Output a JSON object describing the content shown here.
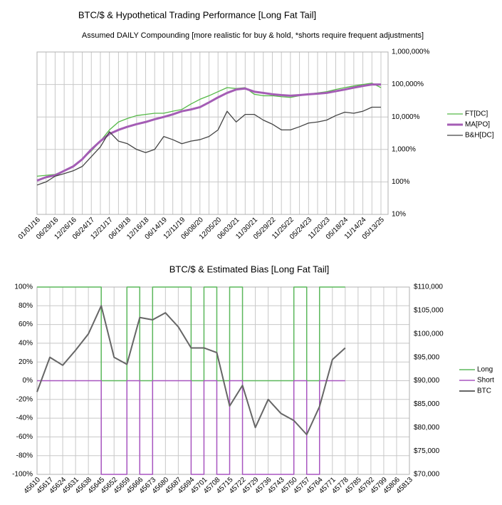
{
  "chart_data": [
    {
      "type": "line",
      "title": "BTC/$ & Hypothetical Trading Performance [Long Fat Tail]",
      "subtitle": "Assumed DAILY Compounding [more realistic for buy & hold, *shorts require frequent adjustments]",
      "categories": [
        "01/01/16",
        null,
        "06/29/16",
        null,
        "12/26/16",
        null,
        "06/24/17",
        null,
        "12/21/17",
        null,
        "06/19/18",
        null,
        "12/16/18",
        null,
        "06/14/19",
        null,
        "12/11/19",
        null,
        "06/08/20",
        null,
        "12/05/20",
        null,
        "06/03/21",
        null,
        "11/30/21",
        null,
        "05/29/22",
        null,
        "11/25/22",
        null,
        "05/24/23",
        null,
        "11/20/23",
        null,
        "05/18/24",
        null,
        "11/14/24",
        null,
        "05/13/25"
      ],
      "series": [
        {
          "name": "FT[DC]",
          "color": "#55b947",
          "width": 1.3,
          "values": [
            150,
            160,
            170,
            220,
            300,
            500,
            900,
            1800,
            4000,
            7000,
            9000,
            11000,
            12000,
            13000,
            13000,
            15000,
            17000,
            25000,
            35000,
            45000,
            60000,
            80000,
            75000,
            80000,
            50000,
            45000,
            45000,
            42000,
            40000,
            45000,
            50000,
            55000,
            60000,
            70000,
            80000,
            90000,
            100000,
            110000,
            80000
          ]
        },
        {
          "name": "MA[PO]",
          "color": "#a45db5",
          "width": 3,
          "values": [
            110,
            140,
            160,
            220,
            300,
            500,
            1000,
            1800,
            3000,
            4000,
            5000,
            6000,
            7000,
            8500,
            10000,
            12000,
            15000,
            17000,
            20000,
            28000,
            40000,
            55000,
            70000,
            75000,
            60000,
            55000,
            50000,
            47000,
            45000,
            47000,
            50000,
            52000,
            55000,
            62000,
            70000,
            80000,
            90000,
            100000,
            100000
          ]
        },
        {
          "name": "B&H[DC]",
          "color": "#444444",
          "width": 1.3,
          "values": [
            80,
            100,
            150,
            180,
            220,
            300,
            600,
            1200,
            3500,
            1800,
            1500,
            1000,
            800,
            1000,
            2500,
            2000,
            1500,
            1800,
            2000,
            2500,
            4000,
            15000,
            7000,
            12000,
            12000,
            8000,
            6000,
            4000,
            4000,
            5000,
            6500,
            7000,
            8000,
            11000,
            14000,
            13000,
            15000,
            20000,
            20000
          ]
        }
      ],
      "log_scale": true,
      "ylim": [
        10,
        1000000
      ],
      "yticks": [
        {
          "value": 10,
          "label": "10%"
        },
        {
          "value": 100,
          "label": "100%"
        },
        {
          "value": 1000,
          "label": "1,000%"
        },
        {
          "value": 10000,
          "label": "10,000%"
        },
        {
          "value": 100000,
          "label": "100,000%"
        },
        {
          "value": 1000000,
          "label": "1,000,000%"
        }
      ],
      "tick_color": "#4caf50",
      "grid": true,
      "legend": "right"
    },
    {
      "type": "line",
      "title": "BTC/$ & Estimated Bias [Long Fat Tail]",
      "x": [
        45610,
        45617,
        45624,
        45631,
        45638,
        45645,
        45652,
        45659,
        45666,
        45673,
        45680,
        45687,
        45694,
        45701,
        45708,
        45715,
        45722,
        45729,
        45736,
        45743,
        45750,
        45757,
        45764,
        45771,
        45778
      ],
      "series": [
        {
          "name": "Long",
          "color": "#5cb85c",
          "width": 1.5,
          "step": true,
          "values": [
            100,
            100,
            100,
            100,
            100,
            0,
            0,
            100,
            0,
            100,
            100,
            100,
            0,
            100,
            0,
            100,
            0,
            0,
            0,
            0,
            100,
            0,
            100,
            100,
            100
          ]
        },
        {
          "name": "Short",
          "color": "#a855c0",
          "width": 1.5,
          "step": true,
          "values": [
            0,
            0,
            0,
            0,
            0,
            -100,
            -100,
            0,
            -100,
            0,
            0,
            0,
            -100,
            0,
            -100,
            0,
            -100,
            -100,
            -100,
            -100,
            0,
            -100,
            0,
            0,
            0
          ]
        },
        {
          "name": "BTC",
          "color": "#666666",
          "width": 2,
          "axis": "y2",
          "values": [
            87600,
            95000,
            93300,
            96500,
            100000,
            106000,
            95000,
            93500,
            103500,
            103000,
            104500,
            101500,
            97000,
            97000,
            96000,
            84600,
            89000,
            80000,
            86000,
            83000,
            81500,
            78500,
            84500,
            94500,
            97000
          ]
        }
      ],
      "xlim": [
        45610,
        45813
      ],
      "xticks": [
        45610,
        45617,
        45624,
        45631,
        45638,
        45645,
        45652,
        45659,
        45666,
        45673,
        45680,
        45687,
        45694,
        45701,
        45708,
        45715,
        45722,
        45729,
        45736,
        45743,
        45750,
        45757,
        45764,
        45771,
        45778,
        45785,
        45792,
        45799,
        45806,
        45813
      ],
      "ylim": [
        -100,
        100
      ],
      "yticks": [
        {
          "value": -100,
          "label": "-100%"
        },
        {
          "value": -80,
          "label": "-80%"
        },
        {
          "value": -60,
          "label": "-60%"
        },
        {
          "value": -40,
          "label": "-40%"
        },
        {
          "value": -20,
          "label": "-20%"
        },
        {
          "value": 0,
          "label": "0%"
        },
        {
          "value": 20,
          "label": "20%"
        },
        {
          "value": 40,
          "label": "40%"
        },
        {
          "value": 60,
          "label": "60%"
        },
        {
          "value": 80,
          "label": "80%"
        },
        {
          "value": 100,
          "label": "100%"
        }
      ],
      "tick_color": "#4caf50",
      "y2lim": [
        70000,
        110000
      ],
      "y2ticks": [
        {
          "value": 70000,
          "label": "$70,000"
        },
        {
          "value": 75000,
          "label": "$75,000"
        },
        {
          "value": 80000,
          "label": "$80,000"
        },
        {
          "value": 85000,
          "label": "$85,000"
        },
        {
          "value": 90000,
          "label": "$90,000"
        },
        {
          "value": 95000,
          "label": "$95,000"
        },
        {
          "value": 100000,
          "label": "$100,000"
        },
        {
          "value": 105000,
          "label": "$105,000"
        },
        {
          "value": 110000,
          "label": "$110,000"
        }
      ],
      "grid": true,
      "legend": "right"
    }
  ]
}
